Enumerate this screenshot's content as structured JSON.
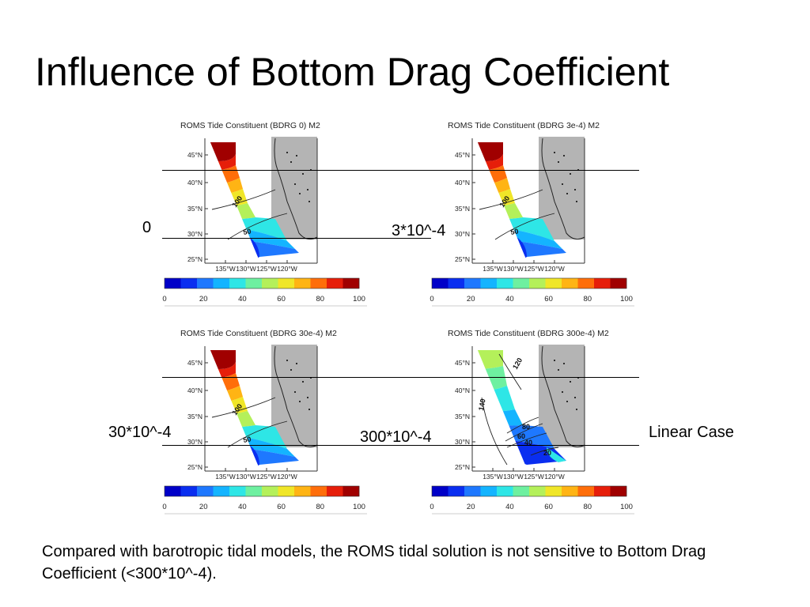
{
  "slide": {
    "title": "Influence of Bottom Drag Coefficient",
    "caption": "Compared with barotropic tidal models, the ROMS tidal solution is not sensitive to Bottom Drag Coefficient (<300*10^-4).",
    "case_labels": [
      "0",
      "3*10^-4",
      "30*10^-4",
      "300*10^-4"
    ],
    "linear_label": "Linear Case"
  },
  "panels": [
    {
      "title": "ROMS Tide Constituent (BDRG 0) M2",
      "variant": "standard",
      "contours": [
        "100",
        "50"
      ]
    },
    {
      "title": "ROMS Tide Constituent (BDRG 3e-4) M2",
      "variant": "standard",
      "contours": [
        "100",
        "50"
      ]
    },
    {
      "title": "ROMS Tide Constituent (BDRG 30e-4) M2",
      "variant": "standard",
      "contours": [
        "100",
        "50"
      ]
    },
    {
      "title": "ROMS Tide Constituent (BDRG 300e-4) M2",
      "variant": "linear",
      "contours": [
        "140",
        "120",
        "80",
        "60",
        "40",
        "20"
      ]
    }
  ],
  "map_axes": {
    "lat_ticks": [
      "45°N",
      "40°N",
      "35°N",
      "30°N",
      "25°N"
    ],
    "lon_ticks": [
      "135°W",
      "130°W",
      "125°W",
      "120°W"
    ]
  },
  "colorbar": {
    "ticks": [
      "0",
      "20",
      "40",
      "60",
      "80",
      "100"
    ],
    "colors": [
      "#0000c8",
      "#0a2ef0",
      "#1e78ff",
      "#14b4ff",
      "#2ee6e6",
      "#6ef0a0",
      "#b4f05a",
      "#f0e628",
      "#ffb414",
      "#ff6e0a",
      "#e61e0a",
      "#a00000"
    ]
  }
}
